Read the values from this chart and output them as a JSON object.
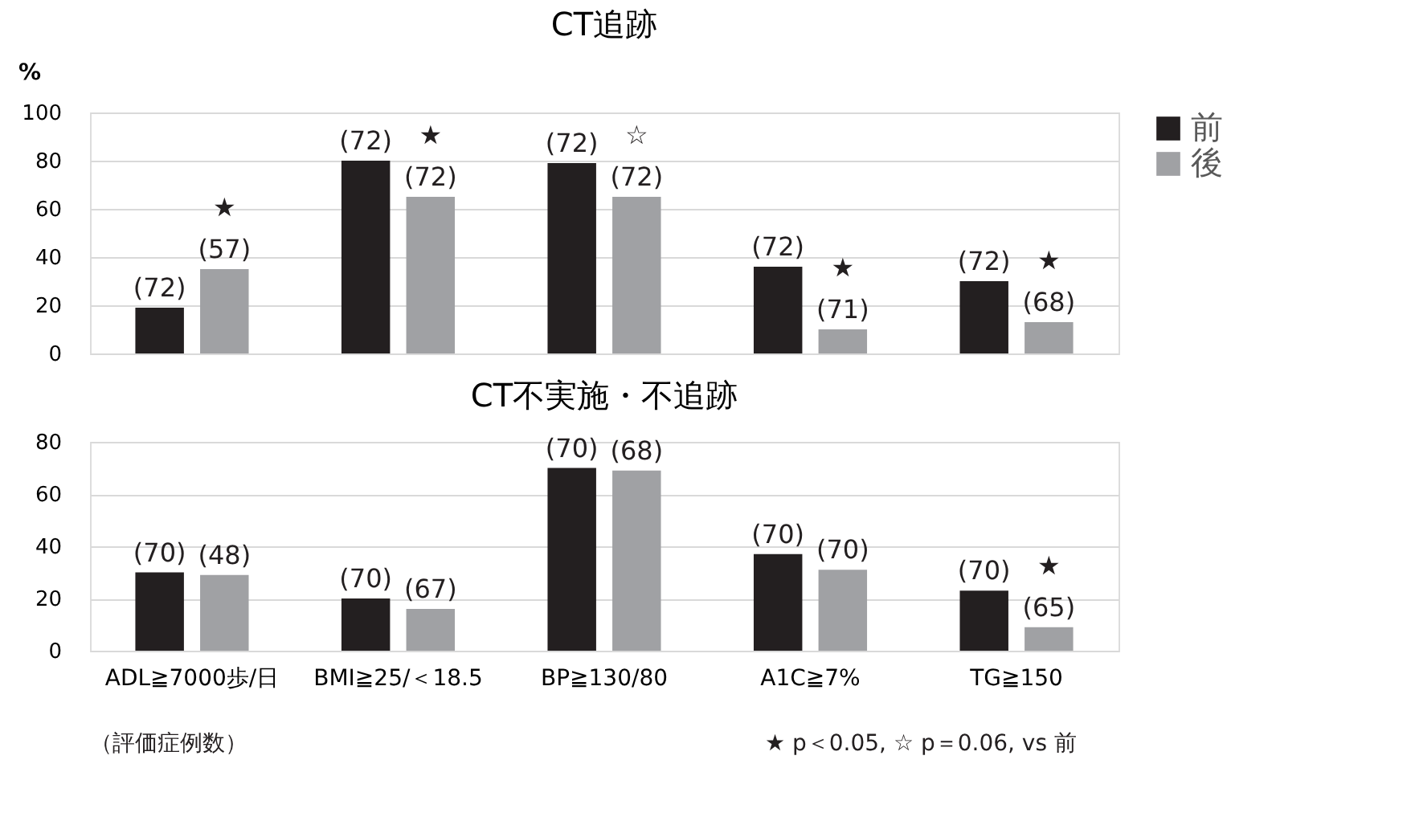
{
  "chart_data": [
    {
      "type": "bar",
      "title": "CT追跡",
      "ylabel": "%",
      "categories": [
        null,
        null,
        null,
        null,
        null
      ],
      "ylim": [
        0,
        100
      ],
      "yticks": [
        0,
        20,
        40,
        60,
        80,
        100
      ],
      "grid": "y",
      "tick_labels": "y",
      "legend": "right",
      "series": [
        {
          "name": "前",
          "color": "#231f20",
          "values": [
            19,
            80,
            79,
            36,
            30
          ]
        },
        {
          "name": "後",
          "color": "#a0a1a4",
          "values": [
            35,
            65,
            65,
            10,
            13
          ]
        }
      ],
      "annotations": [
        "(72)",
        "(72)",
        "(72)",
        "(72)",
        "(72)",
        "★\n(57)",
        "★\n(72)",
        "☆\n(72)",
        "★\n(71)",
        "★\n(68)"
      ]
    },
    {
      "type": "bar",
      "title": "CT不実施・不追跡",
      "categories": [
        "ADL≧7000歩/日",
        "BMI≧25/＜18.5",
        "BP≧130/80",
        "A1C≧7%",
        "TG≧150"
      ],
      "ylim": [
        0,
        80
      ],
      "yticks": [
        0,
        20,
        40,
        60,
        80
      ],
      "grid": "y",
      "legend": "right",
      "series": [
        {
          "name": "前",
          "color": "#231f20",
          "values": [
            30,
            20,
            70,
            37,
            23
          ]
        },
        {
          "name": "後",
          "color": "#a0a1a4",
          "values": [
            29,
            16,
            69,
            31,
            9
          ]
        }
      ],
      "annotations": [
        "(70)",
        "(70)",
        "(70)",
        "(70)",
        "(70)",
        "(48)",
        "(67)",
        "(68)",
        "(70)",
        "★\n(65)",
        "（評価症例数）",
        "★ p＜0.05, ☆ p＝0.06, vs 前"
      ]
    }
  ]
}
